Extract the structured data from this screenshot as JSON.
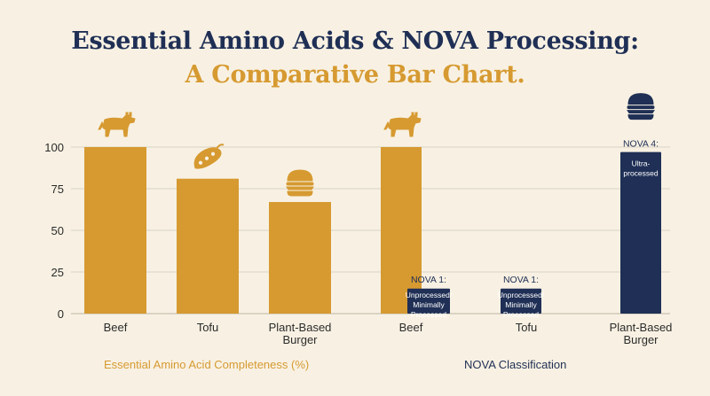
{
  "title": "Essential Amino Acids & NOVA Processing:",
  "subtitle": "A Comparative Bar Chart.",
  "colors": {
    "background": "#f8f1e3",
    "title": "#1f2f55",
    "accent": "#d69a31",
    "navy": "#1f2f55",
    "grid": "#d9d2c4"
  },
  "chart_data": [
    {
      "type": "bar",
      "xlabel": "Essential Amino Acid Completeness (%)",
      "ylabel": "",
      "ylim": [
        0,
        100
      ],
      "yticks": [
        "0",
        "25",
        "50",
        "75",
        "100"
      ],
      "categories": [
        "Beef",
        "Tofu",
        "Plant-Based Burger"
      ],
      "values": [
        100,
        81,
        67
      ],
      "icons": [
        "cow-icon",
        "soybean-icon",
        "burger-icon"
      ],
      "grid": true
    },
    {
      "type": "bar",
      "xlabel": "NOVA Classification",
      "ylabel": "",
      "ylim": [
        0,
        100
      ],
      "categories": [
        "Beef",
        "Tofu",
        "Plant-Based Burger"
      ],
      "series": [
        {
          "values": [
            100,
            null,
            null
          ],
          "color": "#d69a31"
        },
        {
          "values": [
            15,
            15,
            97
          ],
          "color": "#1f2f55"
        }
      ],
      "annotations": [
        {
          "category": "Beef",
          "label": "NOVA 1:",
          "text": "Unprocessed/ Minimally Processed"
        },
        {
          "category": "Tofu",
          "label": "NOVA 1:",
          "text": "Unprocessed/ Minimally Processed"
        },
        {
          "category": "Plant-Based Burger",
          "label": "NOVA 4:",
          "text": "Ultra- processed"
        }
      ],
      "icons": [
        "cow-icon",
        "burger-icon"
      ],
      "grid": true
    }
  ]
}
